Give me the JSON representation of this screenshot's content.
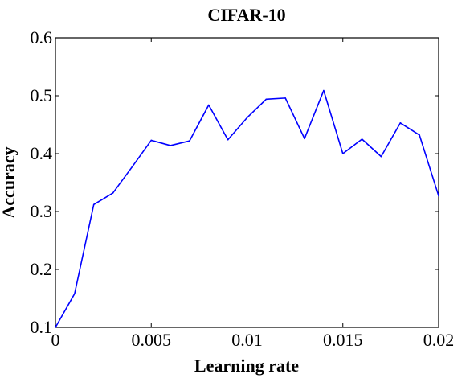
{
  "chart_data": {
    "type": "line",
    "title": "CIFAR-10",
    "xlabel": "Learning rate",
    "ylabel": "Accuracy",
    "xlim": [
      0,
      0.02
    ],
    "ylim": [
      0.1,
      0.6
    ],
    "x_ticks": [
      0,
      0.005,
      0.01,
      0.015,
      0.02
    ],
    "x_tick_labels": [
      "0",
      "0.005",
      "0.01",
      "0.015",
      "0.02"
    ],
    "y_ticks": [
      0.1,
      0.2,
      0.3,
      0.4,
      0.5,
      0.6
    ],
    "y_tick_labels": [
      "0.1",
      "0.2",
      "0.3",
      "0.4",
      "0.5",
      "0.6"
    ],
    "grid": false,
    "series": [
      {
        "color": "#0000ff",
        "x": [
          0,
          0.001,
          0.002,
          0.003,
          0.004,
          0.005,
          0.006,
          0.007,
          0.008,
          0.009,
          0.01,
          0.011,
          0.012,
          0.013,
          0.014,
          0.015,
          0.016,
          0.017,
          0.018,
          0.019,
          0.02
        ],
        "y": [
          0.1,
          0.158,
          0.312,
          0.332,
          0.377,
          0.423,
          0.414,
          0.422,
          0.484,
          0.424,
          0.462,
          0.494,
          0.496,
          0.426,
          0.509,
          0.4,
          0.425,
          0.395,
          0.453,
          0.432,
          0.327
        ]
      }
    ]
  }
}
